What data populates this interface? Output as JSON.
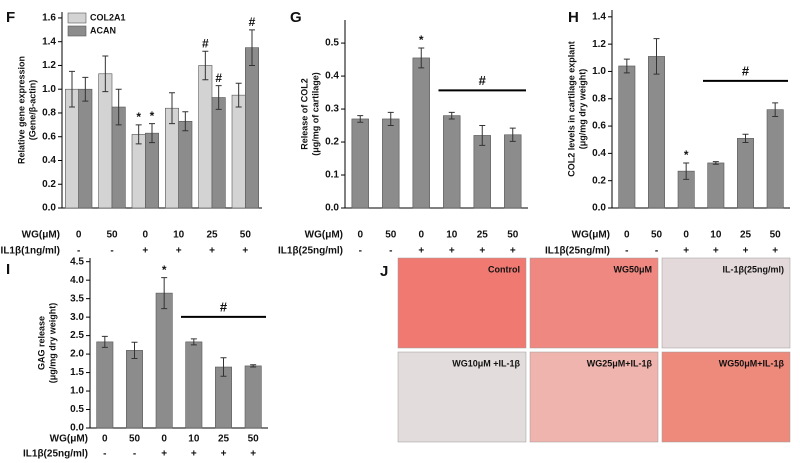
{
  "chart_data": [
    {
      "type": "bar",
      "panel": "F",
      "ylabel": [
        "Relative gene expression",
        "(Gene/β-actin)"
      ],
      "ylim": [
        0,
        1.65
      ],
      "yticks": [
        {
          "value": 0,
          "label": "0.0"
        },
        0.2,
        0.4,
        0.6,
        0.8,
        {
          "value": 1,
          "label": "1.0"
        },
        1.2,
        1.4,
        1.6
      ],
      "row_labels": [
        "WG(μM)",
        "IL1β(1ng/ml)"
      ],
      "categories": [
        "0",
        "50",
        "0",
        "10",
        "25",
        "50"
      ],
      "treatment": [
        "-",
        "-",
        "+",
        "+",
        "+",
        "+"
      ],
      "series": [
        {
          "name": "COL2A1",
          "color": "#d3d3d3",
          "values": [
            1.0,
            1.13,
            0.62,
            0.84,
            1.2,
            0.95
          ],
          "errors": [
            0.15,
            0.15,
            0.08,
            0.13,
            0.12,
            0.1
          ],
          "markers": [
            null,
            null,
            "*",
            null,
            "#",
            null
          ]
        },
        {
          "name": "ACAN",
          "color": "#8c8c8c",
          "values": [
            1.0,
            0.85,
            0.63,
            0.73,
            0.93,
            1.35
          ],
          "errors": [
            0.1,
            0.15,
            0.08,
            0.08,
            0.1,
            0.15
          ],
          "markers": [
            null,
            null,
            "*",
            null,
            "#",
            "#"
          ]
        }
      ]
    },
    {
      "type": "bar",
      "panel": "G",
      "ylabel": [
        "Release of COL2",
        "(μg/mg of cartilage)"
      ],
      "ylim": [
        0,
        0.57
      ],
      "yticks": [
        {
          "value": 0,
          "label": "0.0"
        },
        0.1,
        0.2,
        0.3,
        0.4,
        0.5
      ],
      "row_labels": [
        "WG(μM)",
        "IL1β(25ng/ml)"
      ],
      "categories": [
        "0",
        "50",
        "0",
        "10",
        "25",
        "50"
      ],
      "treatment": [
        "-",
        "-",
        "+",
        "+",
        "+",
        "+"
      ],
      "series": [
        {
          "color": "#8c8c8c",
          "values": [
            0.27,
            0.27,
            0.455,
            0.28,
            0.22,
            0.222
          ],
          "errors": [
            0.01,
            0.02,
            0.03,
            0.01,
            0.03,
            0.02
          ],
          "markers": [
            null,
            null,
            "*",
            null,
            null,
            null
          ]
        }
      ],
      "significance_bar": {
        "label": "#",
        "span": [
          3,
          5
        ]
      }
    },
    {
      "type": "bar",
      "panel": "H",
      "ylabel": [
        "COL2 levels in cartilage explant",
        "(μg/mg dry weight)"
      ],
      "ylim": [
        0,
        1.45
      ],
      "yticks": [
        {
          "value": 0,
          "label": "0.0"
        },
        0.2,
        0.4,
        0.6,
        0.8,
        {
          "value": 1,
          "label": "1.0"
        },
        1.2,
        1.4
      ],
      "row_labels": [
        "WG(μM)",
        "IL1β(25ng/ml)"
      ],
      "categories": [
        "0",
        "50",
        "0",
        "10",
        "25",
        "50"
      ],
      "treatment": [
        "-",
        "-",
        "+",
        "+",
        "+",
        "+"
      ],
      "series": [
        {
          "color": "#8c8c8c",
          "values": [
            1.04,
            1.11,
            0.27,
            0.33,
            0.51,
            0.72
          ],
          "errors": [
            0.05,
            0.13,
            0.06,
            0.01,
            0.03,
            0.05
          ],
          "markers": [
            null,
            null,
            "*",
            null,
            null,
            null
          ]
        }
      ],
      "significance_bar": {
        "label": "#",
        "span": [
          3,
          5
        ]
      }
    },
    {
      "type": "bar",
      "panel": "I",
      "ylabel": [
        "GAG release",
        "(μg/mg dry weight)"
      ],
      "ylim": [
        0,
        4.6
      ],
      "yticks": [
        {
          "value": 0,
          "label": "0.0"
        },
        0.5,
        {
          "value": 1,
          "label": "1.0"
        },
        1.5,
        {
          "value": 2,
          "label": "2.0"
        },
        2.5,
        {
          "value": 3,
          "label": "3.0"
        },
        3.5,
        {
          "value": 4,
          "label": "4.0"
        },
        4.5
      ],
      "row_labels": [
        "WG(μM)",
        "IL1β(25ng/ml)"
      ],
      "categories": [
        "0",
        "50",
        "0",
        "10",
        "25",
        "50"
      ],
      "treatment": [
        "-",
        "-",
        "+",
        "+",
        "+",
        "+"
      ],
      "series": [
        {
          "color": "#8c8c8c",
          "values": [
            2.33,
            2.1,
            3.65,
            2.33,
            1.65,
            1.68
          ],
          "errors": [
            0.15,
            0.22,
            0.42,
            0.08,
            0.25,
            0.03
          ],
          "markers": [
            null,
            null,
            "*",
            null,
            null,
            null
          ]
        }
      ],
      "significance_bar": {
        "label": "#",
        "span": [
          3,
          5
        ]
      }
    }
  ],
  "panel_j": {
    "panel": "J",
    "tiles": [
      "Control",
      "WG50μM",
      "IL-1β(25ng/ml)",
      "WG10μM +IL-1β",
      "WG25μM+IL-1β",
      "WG50μM+IL-1β"
    ]
  }
}
